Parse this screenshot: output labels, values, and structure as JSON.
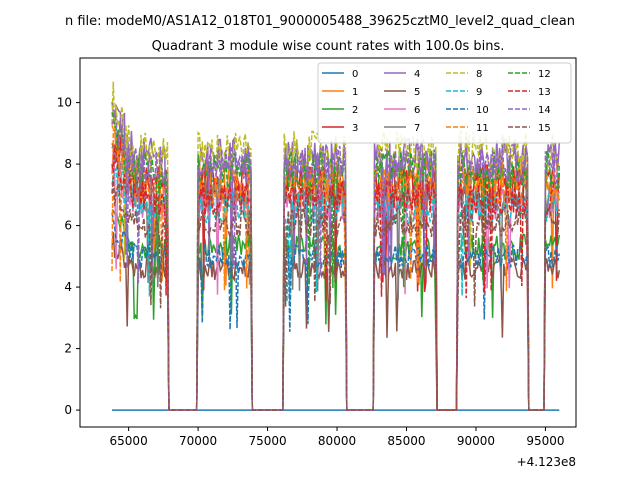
{
  "chart_data": {
    "type": "line",
    "suptitle": "n file: modeM0/AS1A12_018T01_9000005488_39625cztM0_level2_quad_clean",
    "title": "Quadrant 3 module wise count rates with 100.0s bins.",
    "xlabel": "",
    "ylabel": "",
    "x_offset_label": "+4.123e8",
    "xlim": [
      61500,
      97200
    ],
    "ylim": [
      -0.55,
      11.45
    ],
    "xticks": [
      65000,
      70000,
      75000,
      80000,
      85000,
      90000,
      95000
    ],
    "xtick_labels": [
      "65000",
      "70000",
      "75000",
      "80000",
      "85000",
      "90000",
      "95000"
    ],
    "yticks": [
      0,
      2,
      4,
      6,
      8,
      10
    ],
    "ytick_labels": [
      "0",
      "2",
      "4",
      "6",
      "8",
      "10"
    ],
    "grid": false,
    "legend_position": "top-right",
    "legend_columns": 4,
    "x_start": 63800,
    "x_end": 96000,
    "bin_size": 100,
    "on_intervals": [
      [
        63800,
        67800
      ],
      [
        70000,
        73800
      ],
      [
        76200,
        80600
      ],
      [
        82700,
        87100
      ],
      [
        88700,
        93700
      ],
      [
        95000,
        96000
      ]
    ],
    "series": [
      {
        "name": "0",
        "color": "#1f77b4",
        "dash": "solid",
        "base": 0.0
      },
      {
        "name": "1",
        "color": "#ff7f0e",
        "dash": "solid",
        "base": 7.6
      },
      {
        "name": "2",
        "color": "#2ca02c",
        "dash": "solid",
        "base": 5.3
      },
      {
        "name": "3",
        "color": "#d62728",
        "dash": "solid",
        "base": 7.4
      },
      {
        "name": "4",
        "color": "#9467bd",
        "dash": "solid",
        "base": 8.2
      },
      {
        "name": "5",
        "color": "#8c564b",
        "dash": "solid",
        "base": 4.6
      },
      {
        "name": "6",
        "color": "#e377c2",
        "dash": "solid",
        "base": 6.7
      },
      {
        "name": "7",
        "color": "#7f7f7f",
        "dash": "solid",
        "base": 7.0
      },
      {
        "name": "8",
        "color": "#bcbd22",
        "dash": "dashed",
        "base": 8.4
      },
      {
        "name": "9",
        "color": "#17becf",
        "dash": "dashed",
        "base": 6.6
      },
      {
        "name": "10",
        "color": "#1f77b4",
        "dash": "dashed",
        "base": 5.0
      },
      {
        "name": "11",
        "color": "#ff7f0e",
        "dash": "dashed",
        "base": 7.3
      },
      {
        "name": "12",
        "color": "#2ca02c",
        "dash": "dashed",
        "base": 7.8
      },
      {
        "name": "13",
        "color": "#d62728",
        "dash": "dashed",
        "base": 6.9
      },
      {
        "name": "14",
        "color": "#9467bd",
        "dash": "dashed",
        "base": 8.0
      },
      {
        "name": "15",
        "color": "#8c564b",
        "dash": "dashed",
        "base": 6.1
      }
    ]
  }
}
